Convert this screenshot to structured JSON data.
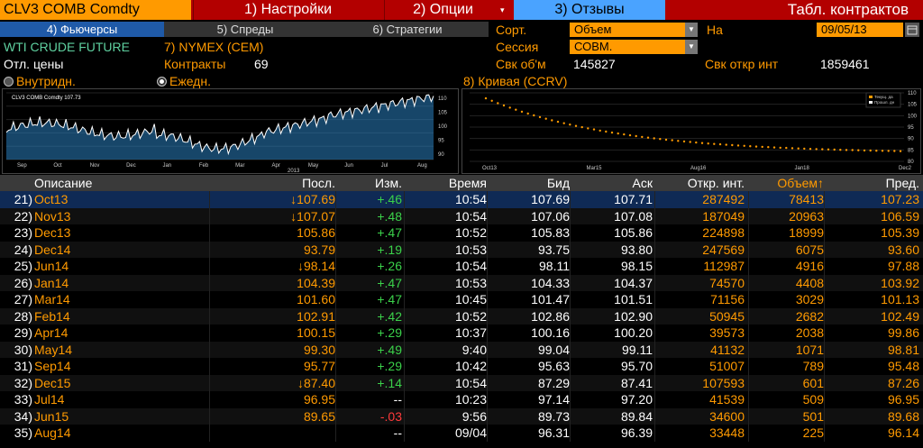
{
  "header": {
    "ticker": "CLV3 COMB Comdty",
    "menus": [
      {
        "label": "1) Настройки"
      },
      {
        "label": "2) Опции"
      },
      {
        "label": "3) Отзывы"
      }
    ],
    "dropdown_glyph": "▾",
    "title": "Табл. контрактов"
  },
  "tabs": [
    {
      "label": "4) Фьючерсы"
    },
    {
      "label": "5) Спреды"
    },
    {
      "label": "6) Стратегии"
    }
  ],
  "sort": {
    "label": "Сорт.",
    "value": "Объем"
  },
  "session": {
    "label": "Сессия",
    "value": "СОВМ."
  },
  "on": {
    "label": "На",
    "value": "09/05/13"
  },
  "security": {
    "name": "WTI CRUDE FUTURE",
    "exchange": "7) NYMEX (CEM)"
  },
  "info": {
    "otl_label": "Отл. цены",
    "contracts_label": "Контракты",
    "contracts_value": "69",
    "svk_volume_label": "Свк об'м",
    "svk_volume_value": "145827",
    "svk_oi_label": "Свк откр инт",
    "svk_oi_value": "1859461"
  },
  "radios": [
    {
      "label": "Внутридн.",
      "selected": false
    },
    {
      "label": "Ежедн.",
      "selected": true
    }
  ],
  "curve_title": "8) Кривая (CCRV)",
  "left_chart": {
    "legend": "CLV3 COMB Comdty  107.73",
    "x_ticks": [
      "Sep",
      "Oct",
      "Nov",
      "Dec",
      "Jan",
      "Feb",
      "Mar",
      "Apr",
      "May",
      "Jun",
      "Jul",
      "Aug"
    ],
    "year_label": "2013",
    "y_ticks": [
      "110",
      "105",
      "100",
      "95",
      "90"
    ]
  },
  "right_chart": {
    "legend": [
      "Текущ. да",
      "Прошл. дн"
    ],
    "x_ticks": [
      "Oct13",
      "Mar15",
      "Aug16",
      "Jan18",
      "Dec2"
    ],
    "y_ticks": [
      "110",
      "105",
      "100",
      "95",
      "90",
      "85",
      "80"
    ]
  },
  "table": {
    "columns": [
      "Описание",
      "Посл.",
      "Изм.",
      "Время",
      "Бид",
      "Аск",
      "Откр. инт.",
      "Объем",
      "Пред."
    ],
    "sort_arrow": "↑",
    "rows": [
      {
        "n": "21)",
        "desc": "Oct13",
        "last": "↓107.69",
        "chg": "+.46",
        "time": "10:54",
        "bid": "107.69",
        "ask": "107.71",
        "oi": "287492",
        "vol": "78413",
        "prev": "107.23"
      },
      {
        "n": "22)",
        "desc": "Nov13",
        "last": "↓107.07",
        "chg": "+.48",
        "time": "10:54",
        "bid": "107.06",
        "ask": "107.08",
        "oi": "187049",
        "vol": "20963",
        "prev": "106.59"
      },
      {
        "n": "23)",
        "desc": "Dec13",
        "last": "105.86",
        "chg": "+.47",
        "time": "10:52",
        "bid": "105.83",
        "ask": "105.86",
        "oi": "224898",
        "vol": "18999",
        "prev": "105.39"
      },
      {
        "n": "24)",
        "desc": "Dec14",
        "last": "93.79",
        "chg": "+.19",
        "time": "10:53",
        "bid": "93.75",
        "ask": "93.80",
        "oi": "247569",
        "vol": "6075",
        "prev": "93.60"
      },
      {
        "n": "25)",
        "desc": "Jun14",
        "last": "↓98.14",
        "chg": "+.26",
        "time": "10:54",
        "bid": "98.11",
        "ask": "98.15",
        "oi": "112987",
        "vol": "4916",
        "prev": "97.88"
      },
      {
        "n": "26)",
        "desc": "Jan14",
        "last": "104.39",
        "chg": "+.47",
        "time": "10:53",
        "bid": "104.33",
        "ask": "104.37",
        "oi": "74570",
        "vol": "4408",
        "prev": "103.92"
      },
      {
        "n": "27)",
        "desc": "Mar14",
        "last": "101.60",
        "chg": "+.47",
        "time": "10:45",
        "bid": "101.47",
        "ask": "101.51",
        "oi": "71156",
        "vol": "3029",
        "prev": "101.13"
      },
      {
        "n": "28)",
        "desc": "Feb14",
        "last": "102.91",
        "chg": "+.42",
        "time": "10:52",
        "bid": "102.86",
        "ask": "102.90",
        "oi": "50945",
        "vol": "2682",
        "prev": "102.49"
      },
      {
        "n": "29)",
        "desc": "Apr14",
        "last": "100.15",
        "chg": "+.29",
        "time": "10:37",
        "bid": "100.16",
        "ask": "100.20",
        "oi": "39573",
        "vol": "2038",
        "prev": "99.86"
      },
      {
        "n": "30)",
        "desc": "May14",
        "last": "99.30",
        "chg": "+.49",
        "time": "9:40",
        "bid": "99.04",
        "ask": "99.11",
        "oi": "41132",
        "vol": "1071",
        "prev": "98.81"
      },
      {
        "n": "31)",
        "desc": "Sep14",
        "last": "95.77",
        "chg": "+.29",
        "time": "10:42",
        "bid": "95.63",
        "ask": "95.70",
        "oi": "51007",
        "vol": "789",
        "prev": "95.48"
      },
      {
        "n": "32)",
        "desc": "Dec15",
        "last": "↓87.40",
        "chg": "+.14",
        "time": "10:54",
        "bid": "87.29",
        "ask": "87.41",
        "oi": "107593",
        "vol": "601",
        "prev": "87.26"
      },
      {
        "n": "33)",
        "desc": "Jul14",
        "last": "96.95",
        "chg": "--",
        "time": "10:23",
        "bid": "97.14",
        "ask": "97.20",
        "oi": "41539",
        "vol": "509",
        "prev": "96.95"
      },
      {
        "n": "34)",
        "desc": "Jun15",
        "last": "89.65",
        "chg": "-.03",
        "time": "9:56",
        "bid": "89.73",
        "ask": "89.84",
        "oi": "34600",
        "vol": "501",
        "prev": "89.68"
      },
      {
        "n": "35)",
        "desc": "Aug14",
        "last": "",
        "chg": "--",
        "time": "09/04",
        "bid": "96.31",
        "ask": "96.39",
        "oi": "33448",
        "vol": "225",
        "prev": "96.14"
      }
    ]
  },
  "colors": {
    "orange": "#ff9a00",
    "green": "#3bd14a",
    "red": "#ff3b3b",
    "white": "#ffffff",
    "curve": "#ff9a00",
    "chart_line": "#ffffff",
    "chart_fill": "#2a7fc0"
  }
}
